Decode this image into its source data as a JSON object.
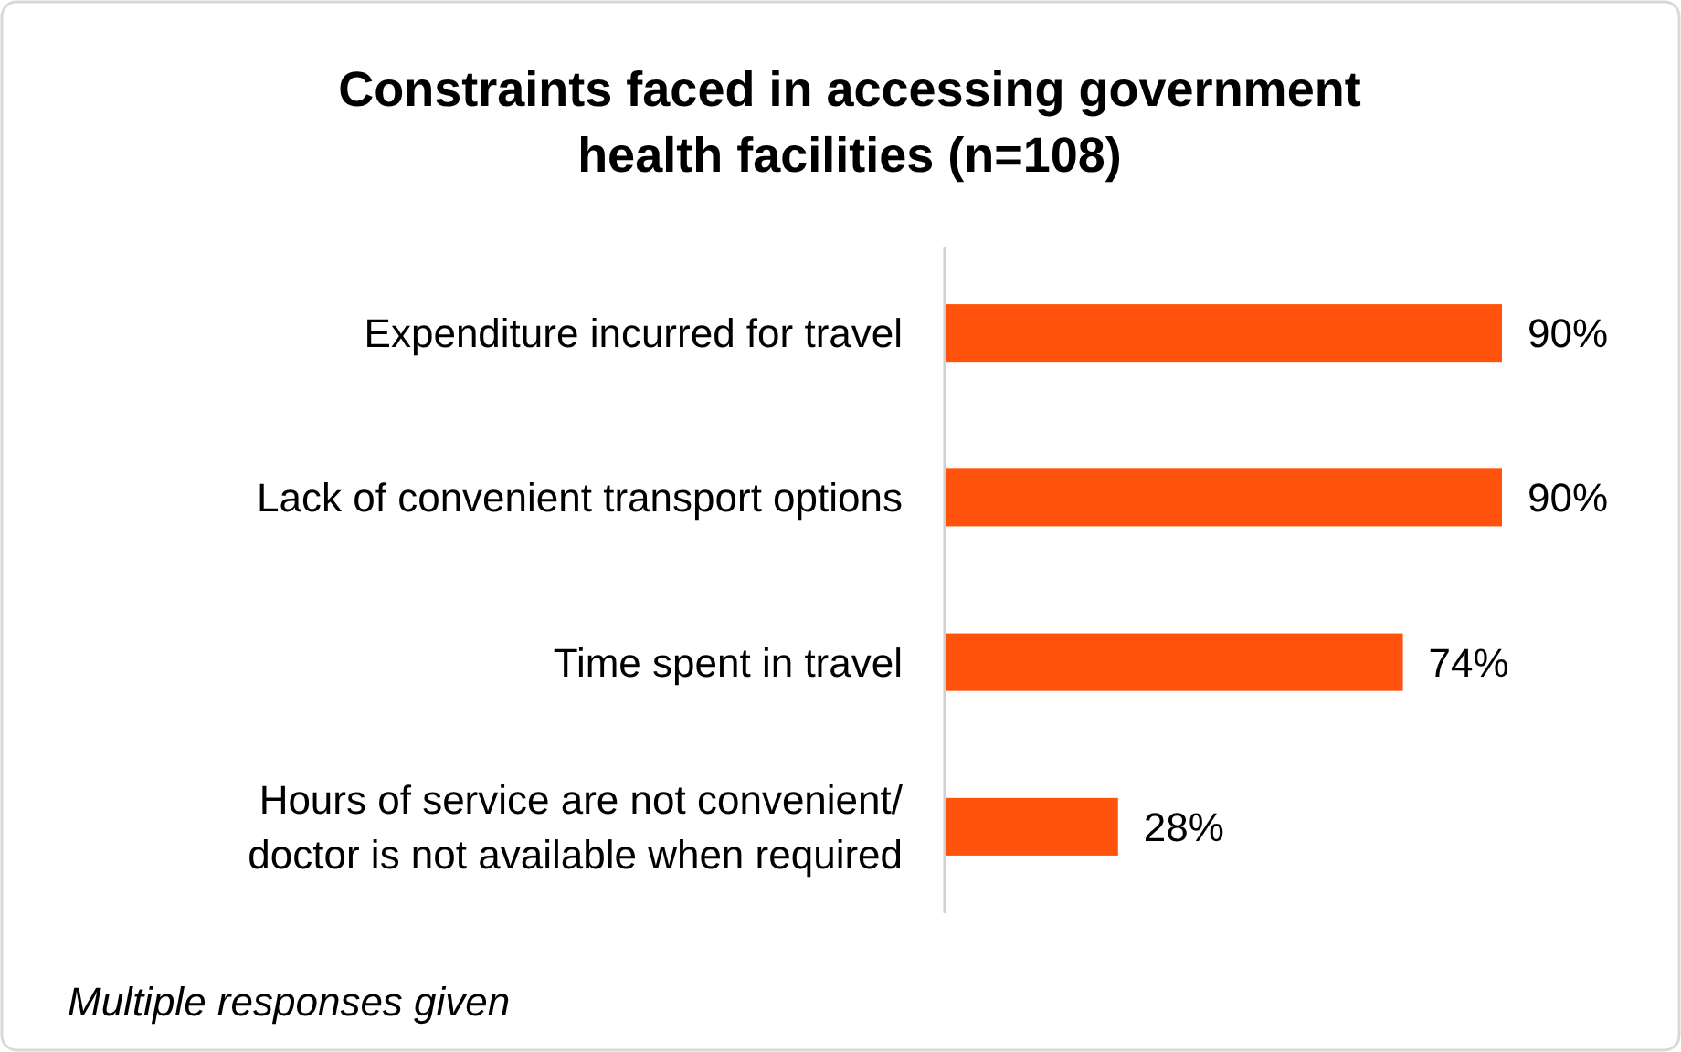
{
  "chart_data": {
    "type": "bar",
    "orientation": "horizontal",
    "title": "Constraints faced in accessing government health facilities (n=108)",
    "categories": [
      "Expenditure incurred for travel",
      "Lack of convenient transport options",
      "Time spent in travel",
      "Hours of service are not convenient/ doctor is not available when required"
    ],
    "values": [
      90,
      90,
      74,
      28
    ],
    "value_labels": [
      "90%",
      "90%",
      "74%",
      "28%"
    ],
    "color": "#ff530d",
    "annotations": [
      "Multiple responses given"
    ]
  }
}
